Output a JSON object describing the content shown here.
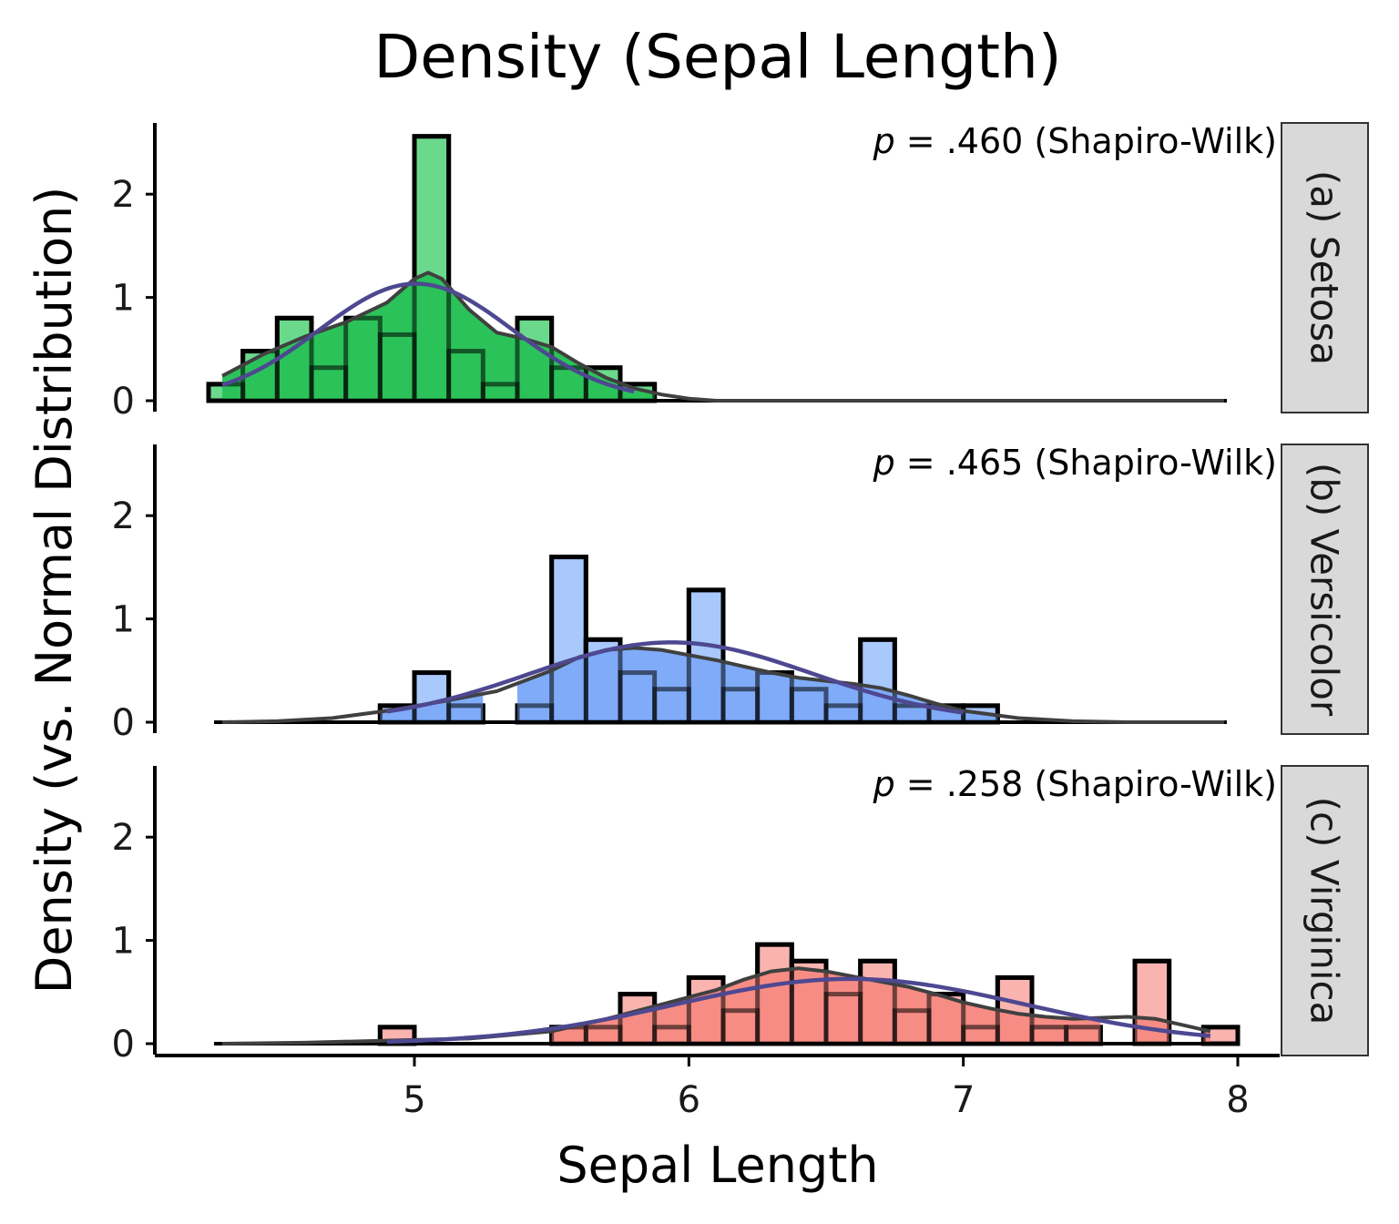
{
  "chart_data": {
    "type": "bar",
    "title": "Density (Sepal Length)",
    "xlabel": "Sepal Length",
    "ylabel": "Density (vs. Normal Distribution)",
    "xlim": [
      4.2,
      8.15
    ],
    "ylim": [
      0,
      2.7
    ],
    "x_ticks": [
      5,
      6,
      7,
      8
    ],
    "y_ticks": [
      0,
      1,
      2
    ],
    "bin_width": 0.125,
    "colors": {
      "density_curve": "#404040",
      "normal_curve": "#4e4891",
      "strip_bg": "#d9d9d9"
    },
    "facets": [
      {
        "strip": "(a) Setosa",
        "annotation_p": "p",
        "annotation_rest": " = .460 (Shapiro-Wilk)",
        "fill": "#2bc25a",
        "fill_light": "#6bd98c",
        "bins": [
          {
            "x0": 4.25,
            "y": 0.16
          },
          {
            "x0": 4.375,
            "y": 0.48
          },
          {
            "x0": 4.5,
            "y": 0.8
          },
          {
            "x0": 4.625,
            "y": 0.32
          },
          {
            "x0": 4.75,
            "y": 0.8
          },
          {
            "x0": 4.875,
            "y": 0.64
          },
          {
            "x0": 5.0,
            "y": 2.56
          },
          {
            "x0": 5.125,
            "y": 0.48
          },
          {
            "x0": 5.25,
            "y": 0.16
          },
          {
            "x0": 5.375,
            "y": 0.8
          },
          {
            "x0": 5.5,
            "y": 0.32
          },
          {
            "x0": 5.625,
            "y": 0.32
          },
          {
            "x0": 5.75,
            "y": 0.16
          }
        ],
        "normal": {
          "mean": 5.006,
          "sd": 0.352,
          "from": 4.3,
          "to": 5.8
        },
        "density": [
          [
            4.3,
            0.24
          ],
          [
            4.45,
            0.45
          ],
          [
            4.6,
            0.62
          ],
          [
            4.75,
            0.76
          ],
          [
            4.9,
            0.95
          ],
          [
            5.0,
            1.18
          ],
          [
            5.05,
            1.24
          ],
          [
            5.1,
            1.18
          ],
          [
            5.2,
            0.88
          ],
          [
            5.3,
            0.66
          ],
          [
            5.4,
            0.6
          ],
          [
            5.5,
            0.52
          ],
          [
            5.6,
            0.36
          ],
          [
            5.7,
            0.22
          ],
          [
            5.8,
            0.12
          ],
          [
            5.9,
            0.06
          ],
          [
            6.0,
            0.02
          ],
          [
            6.1,
            0.0
          ],
          [
            7.95,
            0.0
          ]
        ]
      },
      {
        "strip": "(b) Versicolor",
        "annotation_p": "p",
        "annotation_rest": " = .465 (Shapiro-Wilk)",
        "fill": "#7fabf8",
        "fill_light": "#a9c8fb",
        "bins": [
          {
            "x0": 4.875,
            "y": 0.16
          },
          {
            "x0": 5.0,
            "y": 0.48
          },
          {
            "x0": 5.125,
            "y": 0.16
          },
          {
            "x0": 5.375,
            "y": 0.16
          },
          {
            "x0": 5.5,
            "y": 1.6
          },
          {
            "x0": 5.625,
            "y": 0.8
          },
          {
            "x0": 5.75,
            "y": 0.48
          },
          {
            "x0": 5.875,
            "y": 0.32
          },
          {
            "x0": 6.0,
            "y": 1.28
          },
          {
            "x0": 6.125,
            "y": 0.32
          },
          {
            "x0": 6.25,
            "y": 0.48
          },
          {
            "x0": 6.375,
            "y": 0.32
          },
          {
            "x0": 6.5,
            "y": 0.16
          },
          {
            "x0": 6.625,
            "y": 0.8
          },
          {
            "x0": 6.75,
            "y": 0.16
          },
          {
            "x0": 6.875,
            "y": 0.16
          },
          {
            "x0": 7.0,
            "y": 0.16
          }
        ],
        "normal": {
          "mean": 5.936,
          "sd": 0.516,
          "from": 4.9,
          "to": 7.0
        },
        "density": [
          [
            4.3,
            0.0
          ],
          [
            4.5,
            0.01
          ],
          [
            4.7,
            0.04
          ],
          [
            4.9,
            0.11
          ],
          [
            5.1,
            0.2
          ],
          [
            5.3,
            0.3
          ],
          [
            5.5,
            0.5
          ],
          [
            5.6,
            0.63
          ],
          [
            5.7,
            0.7
          ],
          [
            5.8,
            0.72
          ],
          [
            5.9,
            0.7
          ],
          [
            6.0,
            0.65
          ],
          [
            6.1,
            0.6
          ],
          [
            6.2,
            0.54
          ],
          [
            6.3,
            0.48
          ],
          [
            6.4,
            0.43
          ],
          [
            6.5,
            0.4
          ],
          [
            6.6,
            0.37
          ],
          [
            6.7,
            0.33
          ],
          [
            6.8,
            0.26
          ],
          [
            6.9,
            0.18
          ],
          [
            7.0,
            0.11
          ],
          [
            7.2,
            0.04
          ],
          [
            7.4,
            0.01
          ],
          [
            7.6,
            0.0
          ],
          [
            7.95,
            0.0
          ]
        ]
      },
      {
        "strip": "(c) Virginica",
        "annotation_p": "p",
        "annotation_rest": " = .258 (Shapiro-Wilk)",
        "fill": "#f68c84",
        "fill_light": "#f9b4af",
        "bins": [
          {
            "x0": 4.875,
            "y": 0.16
          },
          {
            "x0": 5.5,
            "y": 0.16
          },
          {
            "x0": 5.625,
            "y": 0.16
          },
          {
            "x0": 5.75,
            "y": 0.48
          },
          {
            "x0": 5.875,
            "y": 0.16
          },
          {
            "x0": 6.0,
            "y": 0.64
          },
          {
            "x0": 6.125,
            "y": 0.32
          },
          {
            "x0": 6.25,
            "y": 0.96
          },
          {
            "x0": 6.375,
            "y": 0.8
          },
          {
            "x0": 6.5,
            "y": 0.48
          },
          {
            "x0": 6.625,
            "y": 0.8
          },
          {
            "x0": 6.75,
            "y": 0.32
          },
          {
            "x0": 6.875,
            "y": 0.48
          },
          {
            "x0": 7.0,
            "y": 0.16
          },
          {
            "x0": 7.125,
            "y": 0.64
          },
          {
            "x0": 7.25,
            "y": 0.16
          },
          {
            "x0": 7.375,
            "y": 0.16
          },
          {
            "x0": 7.625,
            "y": 0.8
          },
          {
            "x0": 7.875,
            "y": 0.16
          }
        ],
        "normal": {
          "mean": 6.588,
          "sd": 0.636,
          "from": 4.9,
          "to": 7.9
        },
        "density": [
          [
            4.3,
            0.0
          ],
          [
            4.6,
            0.01
          ],
          [
            4.9,
            0.03
          ],
          [
            5.2,
            0.05
          ],
          [
            5.5,
            0.12
          ],
          [
            5.7,
            0.24
          ],
          [
            5.9,
            0.38
          ],
          [
            6.1,
            0.52
          ],
          [
            6.2,
            0.62
          ],
          [
            6.3,
            0.7
          ],
          [
            6.4,
            0.73
          ],
          [
            6.5,
            0.7
          ],
          [
            6.6,
            0.65
          ],
          [
            6.7,
            0.6
          ],
          [
            6.8,
            0.55
          ],
          [
            6.9,
            0.48
          ],
          [
            7.0,
            0.4
          ],
          [
            7.1,
            0.34
          ],
          [
            7.2,
            0.29
          ],
          [
            7.3,
            0.26
          ],
          [
            7.4,
            0.24
          ],
          [
            7.5,
            0.25
          ],
          [
            7.6,
            0.26
          ],
          [
            7.7,
            0.24
          ],
          [
            7.8,
            0.18
          ],
          [
            7.9,
            0.12
          ]
        ]
      }
    ]
  }
}
